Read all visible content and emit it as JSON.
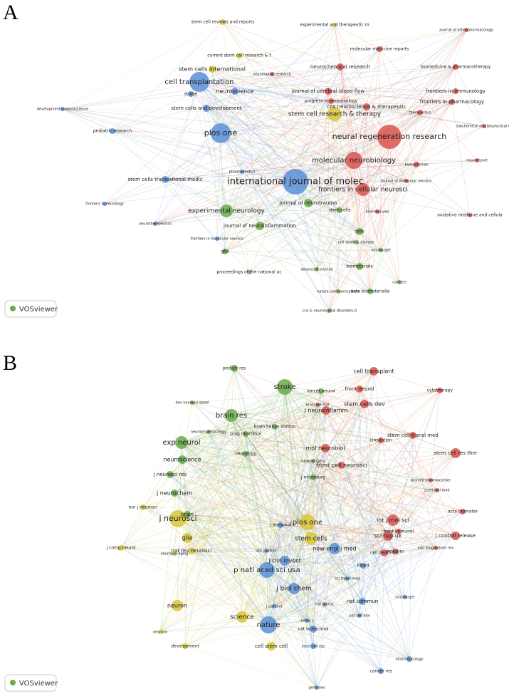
{
  "panels": [
    {
      "letter": "A",
      "watermark": "VOSviewer",
      "nodes": [
        "international journal of molec",
        "neural regeneration research",
        "molecular neurobiology",
        "plos one",
        "cell transplantation",
        "stem cell research & therapy",
        "frontiers in cellular neurosci",
        "experimental neurology",
        "stem cells international",
        "neuroscience",
        "stem cells and development",
        "pediatric research",
        "stem cells translational medic",
        "journal of neuroinflammation",
        "journal of neurotrauma",
        "journal of cerebral blood flow",
        "neurochemical research",
        "molecular medicine reports",
        "cns neuroscience & therapeutic",
        "frontiers in immunology",
        "frontiers in pharmacology",
        "stem cell reviews and reports",
        "experimental and therapeutic m",
        "current stem cell research & t",
        "biomedicine & pharmacotherapy",
        "oxidative medicine and cellula",
        "cells",
        "biomaterials",
        "acta biomaterialia",
        "nature communications",
        "advanced science",
        "proceedings of the national ac",
        "glia",
        "frontiers in molecular neurosc",
        "neurotherapeutics",
        "frontiers in neurology",
        "developmental neuroscience",
        "neuroreport",
        "journal of ethnopharmacology",
        "biochemical and biophysical re",
        "cns & neurological disorders-d",
        "cancers",
        "oncotarget",
        "cell death & disease",
        "stem cells",
        "biomolecules",
        "journal of molecular neurosc",
        "biomedicines",
        "theranostics",
        "progress in neurobiology",
        "neurological research",
        "stroke",
        "pharmaceutics"
      ]
    },
    {
      "letter": "B",
      "watermark": "VOSviewer",
      "nodes": [
        "j neurosci",
        "stroke",
        "brain res",
        "exp neurol",
        "plos one",
        "p natl acad sci usa",
        "nature",
        "science",
        "stem cells",
        "new engl j med",
        "j clin invest",
        "j biol chem",
        "glia",
        "neuron",
        "j comp neurol",
        "eur j neurosci",
        "nat rev neurosci",
        "development",
        "dev biol",
        "cell stem cell",
        "nat biotechnol",
        "stem cell rep",
        "gene dev",
        "nat commun",
        "nat cell biol",
        "cancer res",
        "neuro-oncology",
        "oncotarget",
        "sci transl med",
        "blood",
        "cell death dis",
        "mol ther",
        "sci rep-uk",
        "int j mol sci",
        "j control release",
        "acta biomater",
        "adv drug deliver rev",
        "front immunol",
        "cell transplant",
        "front neurol",
        "stem cells dev",
        "stem cell transl med",
        "stem cell res ther",
        "cytotherapy",
        "circulation",
        "mol neurobiol",
        "j neuroinflamm",
        "front cell neurosci",
        "prog neurobiol",
        "neuroscience",
        "j neurosci res",
        "j neurochem",
        "brain",
        "neurology",
        "j neurosurg",
        "neurosurgery",
        "lancet neurol",
        "pediatr res",
        "brain res bull",
        "dev neurosci-basel",
        "neuropharmacology",
        "brain behav immun",
        "j immunol",
        "biomed pharmacother",
        "j cell mol med",
        "nat protoc",
        "embo j",
        "j cell biol",
        "am j pathol",
        "neurobiol aging"
      ]
    }
  ]
}
